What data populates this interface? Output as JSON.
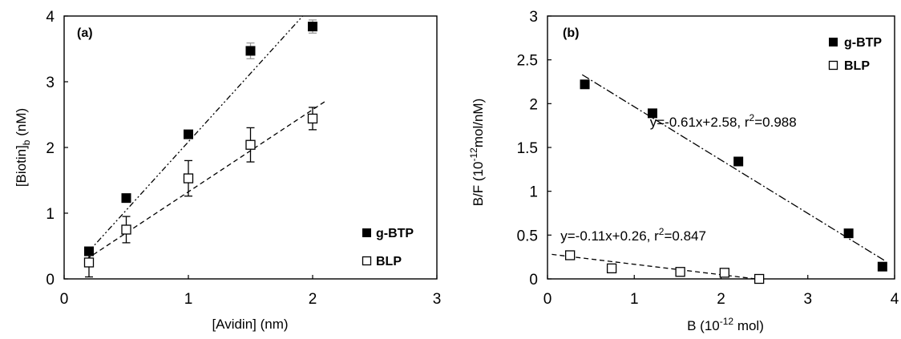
{
  "chart_data": [
    {
      "type": "scatter",
      "panel_label": "(a)",
      "xlabel": "[Avidin] (nm)",
      "ylabel_main": "[Biotin]",
      "ylabel_sub": "b",
      "ylabel_unit": " (nM)",
      "xlim": [
        0,
        3
      ],
      "ylim": [
        0,
        4
      ],
      "xticks": [
        "0",
        "1",
        "2",
        "3"
      ],
      "yticks": [
        "0",
        "1",
        "2",
        "3",
        "4"
      ],
      "legend_position": "bottom-right",
      "series": [
        {
          "name": "g-BTP",
          "marker": "filled-square",
          "x": [
            0.2,
            0.5,
            1.0,
            1.5,
            2.0
          ],
          "y": [
            0.42,
            1.23,
            2.2,
            3.47,
            3.84
          ],
          "err": [
            0.05,
            0.05,
            0.05,
            0.12,
            0.1
          ],
          "fit": {
            "style": "dash-dot-dot",
            "x": [
              0.18,
              1.92
            ],
            "y": [
              0.38,
              4.0
            ]
          }
        },
        {
          "name": "BLP",
          "marker": "open-square",
          "x": [
            0.2,
            0.5,
            1.0,
            1.5,
            2.0
          ],
          "y": [
            0.25,
            0.75,
            1.53,
            2.04,
            2.44
          ],
          "err": [
            0.22,
            0.2,
            0.27,
            0.26,
            0.17
          ],
          "fit": {
            "style": "dashed",
            "x": [
              0.18,
              2.1
            ],
            "y": [
              0.3,
              2.7
            ]
          }
        }
      ]
    },
    {
      "type": "scatter",
      "panel_label": "(b)",
      "xlabel_main": "B (10",
      "xlabel_sup": "-12",
      "xlabel_unit": " mol)",
      "ylabel_main": "B/F (10",
      "ylabel_sup": "-12",
      "ylabel_unit": "mol/nM)",
      "xlim": [
        0,
        4
      ],
      "ylim": [
        0,
        3
      ],
      "xticks": [
        "0",
        "1",
        "2",
        "3",
        "4"
      ],
      "yticks": [
        "0",
        "0.5",
        "1",
        "1.5",
        "2",
        "2.5",
        "3"
      ],
      "legend_position": "top-right",
      "series": [
        {
          "name": "g-BTP",
          "marker": "filled-square",
          "x": [
            0.43,
            1.21,
            2.2,
            3.47,
            3.86
          ],
          "y": [
            2.22,
            1.89,
            1.34,
            0.52,
            0.14
          ],
          "fit": {
            "style": "dash-dot",
            "x": [
              0.4,
              3.9
            ],
            "y": [
              2.33,
              0.2
            ]
          },
          "equation": {
            "main": "y=-0.61x+2.58, r",
            "sup": "2",
            "tail": "=0.988",
            "x": 1.18,
            "y": 1.74
          }
        },
        {
          "name": "BLP",
          "marker": "open-square",
          "x": [
            0.26,
            0.74,
            1.53,
            2.04,
            2.44
          ],
          "y": [
            0.27,
            0.12,
            0.08,
            0.07,
            0.0
          ],
          "fit": {
            "style": "dashed",
            "x": [
              0.05,
              2.4
            ],
            "y": [
              0.28,
              0.0
            ]
          },
          "equation": {
            "main": "y=-0.11x+0.26, r",
            "sup": "2",
            "tail": "=0.847",
            "x": 0.15,
            "y": 0.44
          }
        }
      ]
    }
  ]
}
